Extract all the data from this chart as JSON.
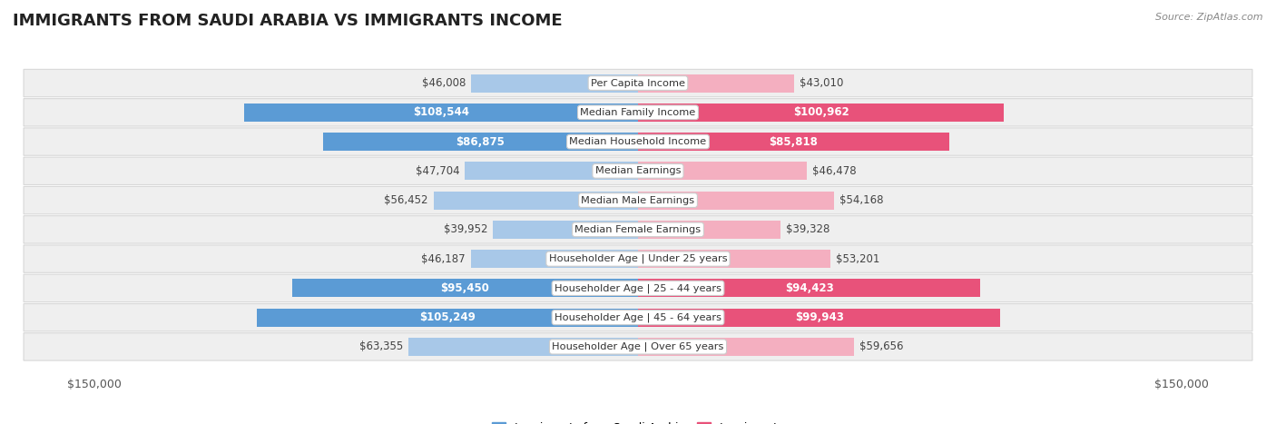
{
  "title": "IMMIGRANTS FROM SAUDI ARABIA VS IMMIGRANTS INCOME",
  "source": "Source: ZipAtlas.com",
  "categories": [
    "Per Capita Income",
    "Median Family Income",
    "Median Household Income",
    "Median Earnings",
    "Median Male Earnings",
    "Median Female Earnings",
    "Householder Age | Under 25 years",
    "Householder Age | 25 - 44 years",
    "Householder Age | 45 - 64 years",
    "Householder Age | Over 65 years"
  ],
  "saudi_values": [
    46008,
    108544,
    86875,
    47704,
    56452,
    39952,
    46187,
    95450,
    105249,
    63355
  ],
  "immigrant_values": [
    43010,
    100962,
    85818,
    46478,
    54168,
    39328,
    53201,
    94423,
    99943,
    59656
  ],
  "saudi_labels": [
    "$46,008",
    "$108,544",
    "$86,875",
    "$47,704",
    "$56,452",
    "$39,952",
    "$46,187",
    "$95,450",
    "$105,249",
    "$63,355"
  ],
  "immigrant_labels": [
    "$43,010",
    "$100,962",
    "$85,818",
    "$46,478",
    "$54,168",
    "$39,328",
    "$53,201",
    "$94,423",
    "$99,943",
    "$59,656"
  ],
  "saudi_color_light": "#a8c8e8",
  "saudi_color_dark": "#5b9bd5",
  "immigrant_color_light": "#f4afc0",
  "immigrant_color_dark": "#e8527a",
  "max_value": 150000,
  "bg_color": "#ffffff",
  "row_bg": "#efefef",
  "title_fontsize": 13,
  "label_fontsize": 8.5,
  "threshold": 70000
}
